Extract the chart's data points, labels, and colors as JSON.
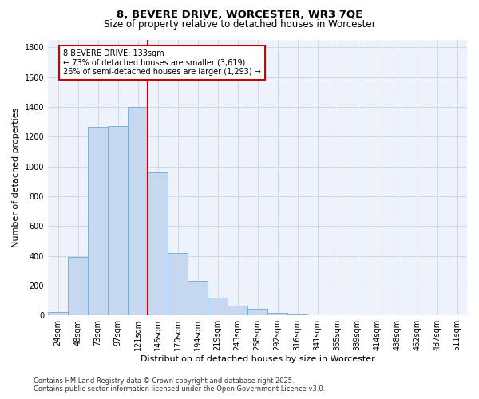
{
  "title_line1": "8, BEVERE DRIVE, WORCESTER, WR3 7QE",
  "title_line2": "Size of property relative to detached houses in Worcester",
  "xlabel": "Distribution of detached houses by size in Worcester",
  "ylabel": "Number of detached properties",
  "bar_labels": [
    "24sqm",
    "48sqm",
    "73sqm",
    "97sqm",
    "121sqm",
    "146sqm",
    "170sqm",
    "194sqm",
    "219sqm",
    "243sqm",
    "268sqm",
    "292sqm",
    "316sqm",
    "341sqm",
    "365sqm",
    "389sqm",
    "414sqm",
    "438sqm",
    "462sqm",
    "487sqm",
    "511sqm"
  ],
  "bar_values": [
    25,
    395,
    1265,
    1270,
    1400,
    960,
    420,
    232,
    118,
    65,
    45,
    15,
    5,
    0,
    0,
    0,
    0,
    0,
    0,
    0,
    0
  ],
  "bar_color": "#c5d8f0",
  "bar_edge_color": "#6aaad4",
  "background_color": "#eef2fb",
  "grid_color": "#d0d8e8",
  "vline_x": 4.5,
  "vline_color": "#cc0000",
  "annotation_line1": "8 BEVERE DRIVE: 133sqm",
  "annotation_line2": "← 73% of detached houses are smaller (3,619)",
  "annotation_line3": "26% of semi-detached houses are larger (1,293) →",
  "annotation_box_color": "#cc0000",
  "ylim": [
    0,
    1850
  ],
  "yticks": [
    0,
    200,
    400,
    600,
    800,
    1000,
    1200,
    1400,
    1600,
    1800
  ],
  "footer_line1": "Contains HM Land Registry data © Crown copyright and database right 2025.",
  "footer_line2": "Contains public sector information licensed under the Open Government Licence v3.0.",
  "title_fontsize": 9.5,
  "subtitle_fontsize": 8.5,
  "axis_label_fontsize": 8,
  "tick_fontsize": 7,
  "annotation_fontsize": 7,
  "footer_fontsize": 6
}
